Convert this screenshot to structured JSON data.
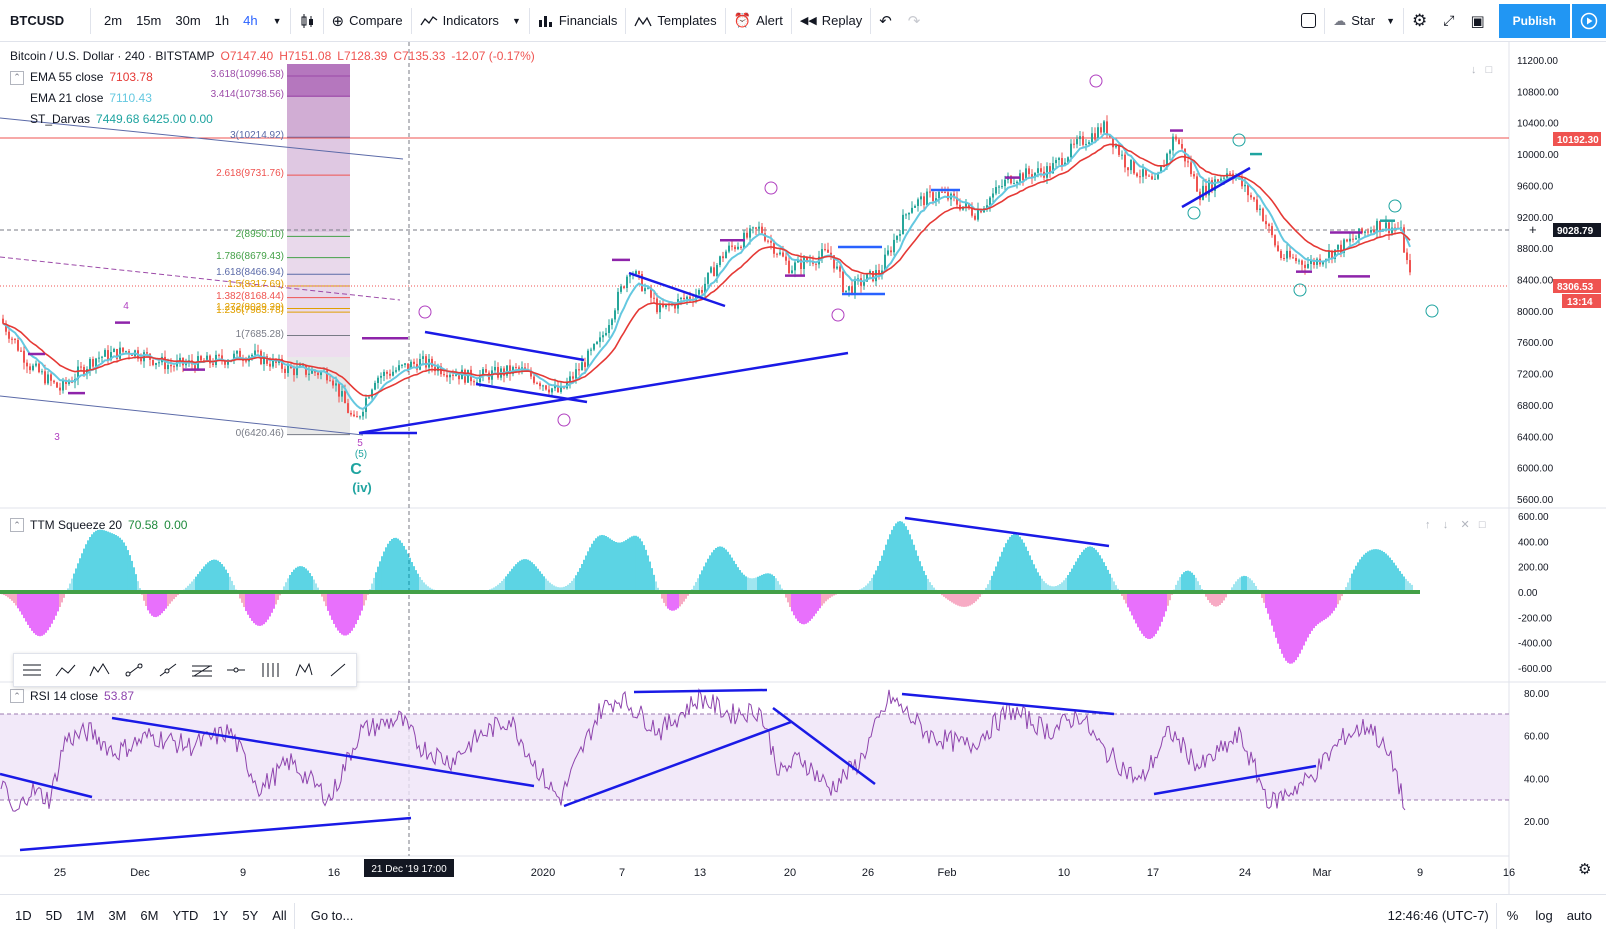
{
  "toolbar": {
    "symbol": "BTCUSD",
    "intervals": [
      "2m",
      "15m",
      "30m",
      "1h",
      "4h"
    ],
    "compare": "Compare",
    "indicators": "Indicators",
    "financials": "Financials",
    "templates": "Templates",
    "alert": "Alert",
    "replay": "Replay",
    "layout_name": "Star",
    "publish": "Publish"
  },
  "legend": {
    "title": "Bitcoin / U.S. Dollar · 240 · BITSTAMP",
    "open": "O7147.40",
    "high": "H7151.08",
    "low": "L7128.39",
    "close": "C7135.33",
    "change": "-12.07 (-0.17%)",
    "ema55_label": "EMA 55 close",
    "ema55_value": "7103.78",
    "ema21_label": "EMA 21 close",
    "ema21_value": "7110.43",
    "darvas_label": "ST_Darvas",
    "darvas_values": "7449.68  6425.00  0.00"
  },
  "fib_levels": [
    "3.618(10996.58)",
    "3.414(10738.56)",
    "3(10214.92)",
    "2.618(9731.76)",
    "2(8950.10)",
    "1.786(8679.43)",
    "1.618(8466.94)",
    "1.5(8317.69)",
    "1.382(8168.44)",
    "1.272(8029.29)",
    "1.236(7983.78)",
    "1(7685.28)",
    "0(6420.46)"
  ],
  "price_axis": [
    "11200.00",
    "10800.00",
    "10400.00",
    "10000.00",
    "9600.00",
    "9200.00",
    "8800.00",
    "8400.00",
    "8000.00",
    "7600.00",
    "7200.00",
    "6800.00",
    "6400.00",
    "6000.00",
    "5600.00"
  ],
  "price_tags": {
    "red_line": "10192.30",
    "crosshair": "9028.79",
    "last_price": "8306.53",
    "countdown": "13:14"
  },
  "wave_labels": {
    "iv": "(iv)",
    "c": "C",
    "wave5": "5",
    "wave5b": "(5)",
    "label3": "3",
    "label4": "4"
  },
  "ttm": {
    "label": "TTM Squeeze 20",
    "v1": "70.58",
    "v2": "0.00",
    "axis": [
      "600.00",
      "400.00",
      "200.00",
      "0.00",
      "-200.00",
      "-400.00",
      "-600.00"
    ]
  },
  "rsi": {
    "label": "RSI 14 close",
    "value": "53.87",
    "axis": [
      "80.00",
      "60.00",
      "40.00",
      "20.00"
    ]
  },
  "time_axis": [
    "25",
    "Dec",
    "9",
    "16",
    "2020",
    "7",
    "13",
    "20",
    "26",
    "Feb",
    "10",
    "17",
    "24",
    "Mar",
    "9",
    "16"
  ],
  "crosshair_time": "21 Dec '19   17:00",
  "bottom": {
    "ranges": [
      "1D",
      "5D",
      "1M",
      "3M",
      "6M",
      "YTD",
      "1Y",
      "5Y",
      "All"
    ],
    "goto": "Go to...",
    "clock": "12:46:46 (UTC-7)",
    "percent": "%",
    "log": "log",
    "auto": "auto"
  },
  "colors": {
    "accent": "#2196f3",
    "ema55": "#e53935",
    "ema21": "#64c8e0",
    "down": "#ef5350",
    "wave": "#b03fc0",
    "trend": "#1a1ae6"
  }
}
